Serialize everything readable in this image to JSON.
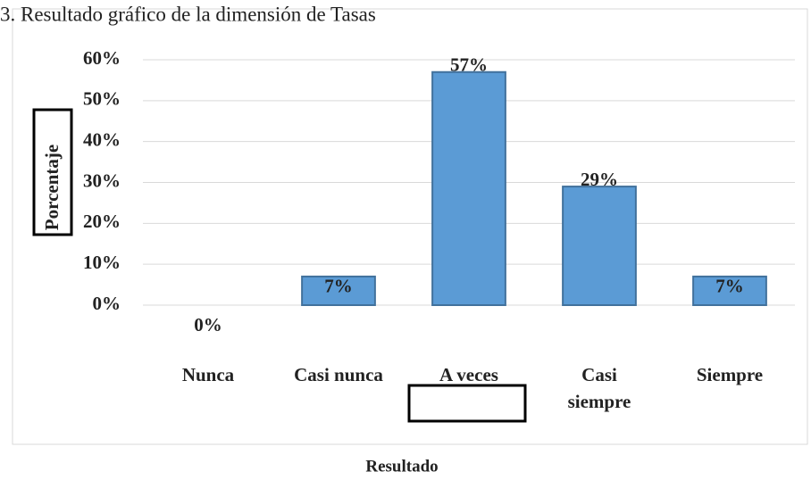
{
  "chart_data": {
    "type": "bar",
    "title": "3. Resultado gráfico de la dimensión de Tasas",
    "categories": [
      "Nunca",
      "Casi nunca",
      "A veces",
      "Casi siempre",
      "Siempre"
    ],
    "values": [
      0,
      7,
      57,
      29,
      7
    ],
    "value_labels": [
      "0%",
      "7%",
      "57%",
      "29%",
      "7%"
    ],
    "color": "#5b9bd5",
    "ylim": [
      0,
      60
    ],
    "yticks": [
      {
        "value": 0,
        "label": "0%"
      },
      {
        "value": 10,
        "label": "10%"
      },
      {
        "value": 20,
        "label": "20%"
      },
      {
        "value": 30,
        "label": "30%"
      },
      {
        "value": 40,
        "label": "40%"
      },
      {
        "value": 50,
        "label": "50%"
      },
      {
        "value": 60,
        "label": "60%"
      }
    ],
    "grid": true,
    "ylabel": "Porcentaje",
    "xlabel": "Resultado"
  }
}
